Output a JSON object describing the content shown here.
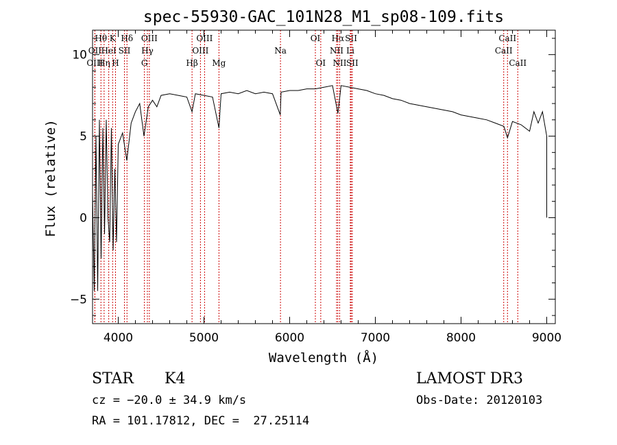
{
  "chart_data": {
    "type": "line",
    "title": "spec-55930-GAC_101N28_M1_sp08-109.fits",
    "xlabel": "Wavelength (Å)",
    "ylabel": "Flux (relative)",
    "xlim": [
      3700,
      9100
    ],
    "ylim": [
      -6.5,
      11.5
    ],
    "xticks": [
      4000,
      5000,
      6000,
      7000,
      8000,
      9000
    ],
    "yticks": [
      -5,
      0,
      5,
      10
    ],
    "series": [
      {
        "name": "spectrum",
        "color": "#000000",
        "x": [
          3700,
          3720,
          3740,
          3760,
          3780,
          3800,
          3820,
          3840,
          3860,
          3880,
          3900,
          3920,
          3940,
          3960,
          3980,
          4000,
          4050,
          4100,
          4150,
          4200,
          4250,
          4300,
          4350,
          4400,
          4450,
          4500,
          4600,
          4700,
          4800,
          4861,
          4900,
          5000,
          5100,
          5175,
          5200,
          5300,
          5400,
          5500,
          5600,
          5700,
          5800,
          5890,
          5900,
          6000,
          6100,
          6200,
          6300,
          6400,
          6500,
          6563,
          6600,
          6700,
          6800,
          6900,
          7000,
          7100,
          7200,
          7300,
          7400,
          7500,
          7600,
          7700,
          7800,
          7900,
          8000,
          8100,
          8200,
          8300,
          8400,
          8500,
          8542,
          8600,
          8700,
          8800,
          8850,
          8900,
          8950,
          9000,
          9000
        ],
        "y": [
          1.5,
          -4.5,
          5.0,
          -4.5,
          6.0,
          -2.5,
          5.5,
          -1.0,
          6.0,
          0.0,
          -1.5,
          5.5,
          -2.0,
          3.0,
          -1.5,
          4.5,
          5.2,
          3.5,
          5.8,
          6.5,
          7.0,
          5.0,
          6.8,
          7.2,
          6.8,
          7.5,
          7.6,
          7.5,
          7.4,
          6.5,
          7.6,
          7.5,
          7.4,
          5.5,
          7.6,
          7.7,
          7.6,
          7.8,
          7.6,
          7.7,
          7.6,
          6.3,
          7.7,
          7.8,
          7.8,
          7.9,
          7.9,
          8.0,
          8.1,
          6.4,
          8.1,
          8.0,
          7.9,
          7.8,
          7.6,
          7.5,
          7.3,
          7.2,
          7.0,
          6.9,
          6.8,
          6.7,
          6.6,
          6.5,
          6.3,
          6.2,
          6.1,
          6.0,
          5.8,
          5.6,
          4.9,
          5.9,
          5.7,
          5.3,
          6.5,
          5.8,
          6.5,
          5.0,
          0.0
        ]
      }
    ],
    "lines": [
      {
        "name": "OII",
        "wavelength": 3727,
        "row": 2
      },
      {
        "name": "Hθ",
        "wavelength": 3798,
        "row": 1
      },
      {
        "name": "OIII",
        "wavelength": 3727,
        "row": 3
      },
      {
        "name": "Hη",
        "wavelength": 3835,
        "row": 3
      },
      {
        "name": "HeI",
        "wavelength": 3889,
        "row": 2
      },
      {
        "name": "K",
        "wavelength": 3934,
        "row": 1
      },
      {
        "name": "H",
        "wavelength": 3968,
        "row": 3
      },
      {
        "name": "SII",
        "wavelength": 4072,
        "row": 2
      },
      {
        "name": "Hδ",
        "wavelength": 4102,
        "row": 1
      },
      {
        "name": "OIII",
        "wavelength": 4363,
        "row": 1
      },
      {
        "name": "Hγ",
        "wavelength": 4340,
        "row": 2
      },
      {
        "name": "G",
        "wavelength": 4305,
        "row": 3
      },
      {
        "name": "Hβ",
        "wavelength": 4861,
        "row": 3
      },
      {
        "name": "OIII",
        "wavelength": 5007,
        "row": 1
      },
      {
        "name": "OIII",
        "wavelength": 4959,
        "row": 2
      },
      {
        "name": "Mg",
        "wavelength": 5175,
        "row": 3
      },
      {
        "name": "Na",
        "wavelength": 5893,
        "row": 2
      },
      {
        "name": "OI",
        "wavelength": 6300,
        "row": 1
      },
      {
        "name": "OI",
        "wavelength": 6363,
        "row": 3
      },
      {
        "name": "Hα",
        "wavelength": 6563,
        "row": 1
      },
      {
        "name": "NII",
        "wavelength": 6548,
        "row": 2
      },
      {
        "name": "NII",
        "wavelength": 6584,
        "row": 3
      },
      {
        "name": "SII",
        "wavelength": 6717,
        "row": 1
      },
      {
        "name": "Li",
        "wavelength": 6708,
        "row": 2
      },
      {
        "name": "SII",
        "wavelength": 6731,
        "row": 3
      },
      {
        "name": "CaII",
        "wavelength": 8542,
        "row": 1
      },
      {
        "name": "CaII",
        "wavelength": 8498,
        "row": 2
      },
      {
        "name": "CaII",
        "wavelength": 8662,
        "row": 3
      }
    ]
  },
  "footer": {
    "object_class": "STAR",
    "subclass": "K4",
    "survey": "LAMOST DR3",
    "redshift": "cz = −20.0 ± 34.9 km/s",
    "obs_date": "Obs-Date: 20120103",
    "coords": "RA = 101.17812, DEC =  27.25114"
  }
}
